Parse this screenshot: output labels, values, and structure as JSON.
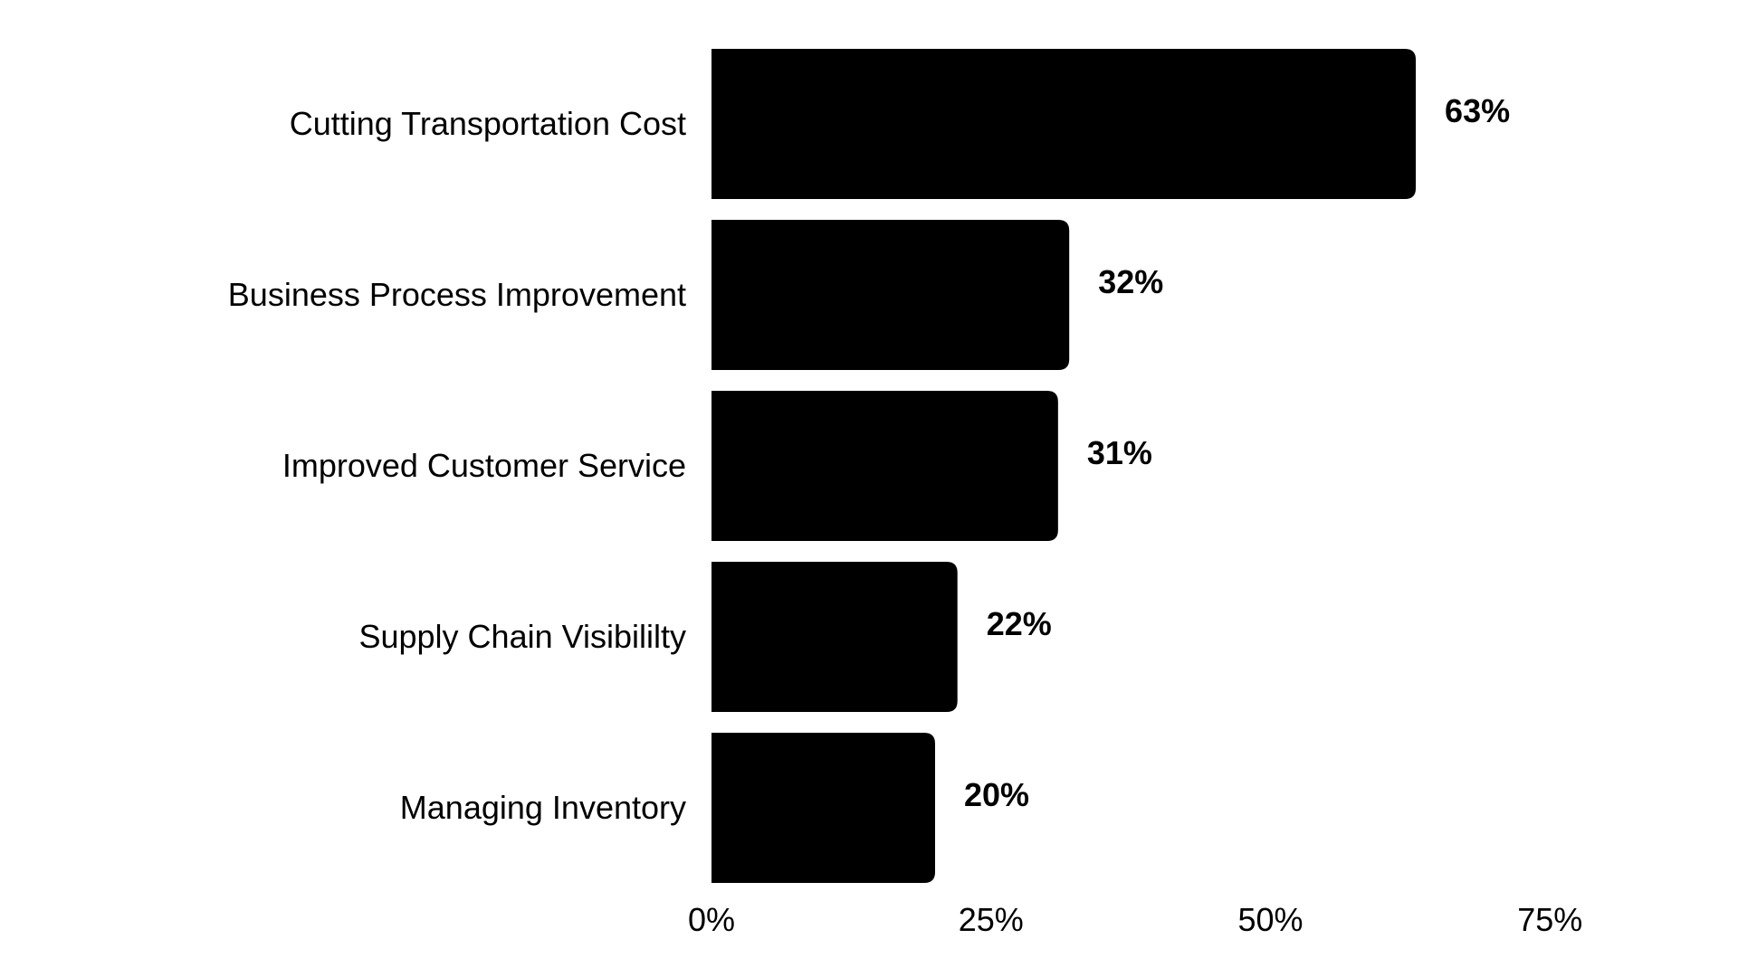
{
  "chart_data": {
    "type": "bar",
    "orientation": "horizontal",
    "categories": [
      "Cutting Transportation Cost",
      "Business Process Improvement",
      "Improved Customer Service",
      "Supply Chain Visibililty",
      "Managing Inventory"
    ],
    "values": [
      63,
      32,
      31,
      22,
      20
    ],
    "value_labels": [
      "63%",
      "32%",
      "31%",
      "22%",
      "20%"
    ],
    "xlim": [
      0,
      75
    ],
    "x_ticks": [
      0,
      25,
      50,
      75
    ],
    "x_tick_labels": [
      "0%",
      "25%",
      "50%",
      "75%"
    ],
    "grid": false,
    "legend": "none",
    "colors": {
      "bar": "#000000",
      "background": "#ffffff",
      "text": "#000000"
    }
  }
}
